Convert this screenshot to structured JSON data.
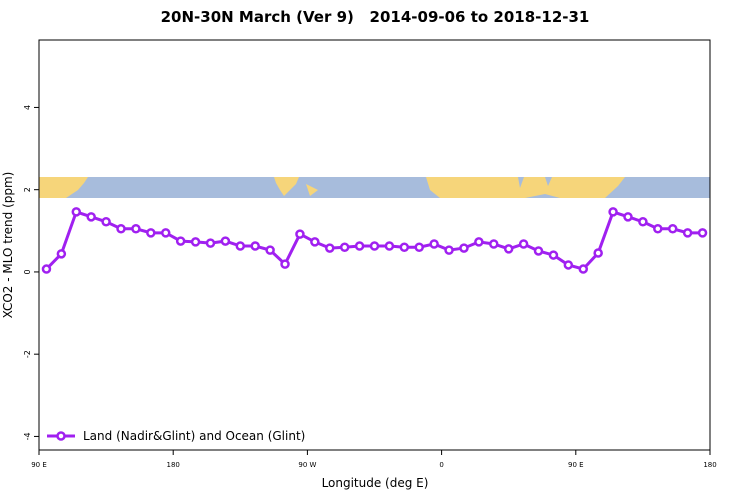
{
  "chart_data": {
    "type": "line",
    "title": "20N-30N March (Ver 9)   2014-09-06 to 2018-12-31",
    "x_label": "Longitude (deg E)",
    "y_label": "XCO2 - MLO trend (ppm)",
    "xlim": [
      90,
      540
    ],
    "ylim": [
      -4.33,
      5.64
    ],
    "xticks": [
      {
        "value": 90,
        "label": "90 E"
      },
      180,
      {
        "value": 270,
        "label": "90 W"
      },
      {
        "value": 360,
        "label": "0"
      },
      {
        "value": 450,
        "label": "90 E"
      },
      {
        "value": 540,
        "label": "180"
      }
    ],
    "yticks": [
      -4,
      -2,
      0,
      2,
      4
    ],
    "legend": "bottom-left",
    "x": [
      95,
      105,
      115,
      125,
      135,
      145,
      155,
      165,
      175,
      185,
      195,
      205,
      215,
      225,
      235,
      245,
      255,
      265,
      275,
      285,
      295,
      305,
      315,
      325,
      335,
      345,
      355,
      365,
      375,
      385,
      395,
      405,
      415,
      425,
      435,
      445,
      455,
      465,
      475,
      485,
      495,
      505,
      515,
      525,
      535
    ],
    "series": [
      {
        "name": "Land (Nadir&Glint) and Ocean (Glint)",
        "color": "#a020f0",
        "values": [
          0.07,
          0.44,
          1.46,
          1.34,
          1.22,
          1.05,
          1.05,
          0.95,
          0.95,
          0.75,
          0.73,
          0.7,
          0.75,
          0.63,
          0.63,
          0.53,
          0.19,
          0.92,
          0.73,
          0.58,
          0.6,
          0.63,
          0.63,
          0.63,
          0.6,
          0.6,
          0.68,
          0.53,
          0.58,
          0.73,
          0.68,
          0.56,
          0.68,
          0.51,
          0.41,
          0.17,
          0.07,
          0.46,
          1.46,
          1.34,
          1.22,
          1.05,
          1.05,
          0.95,
          0.95
        ]
      }
    ]
  }
}
